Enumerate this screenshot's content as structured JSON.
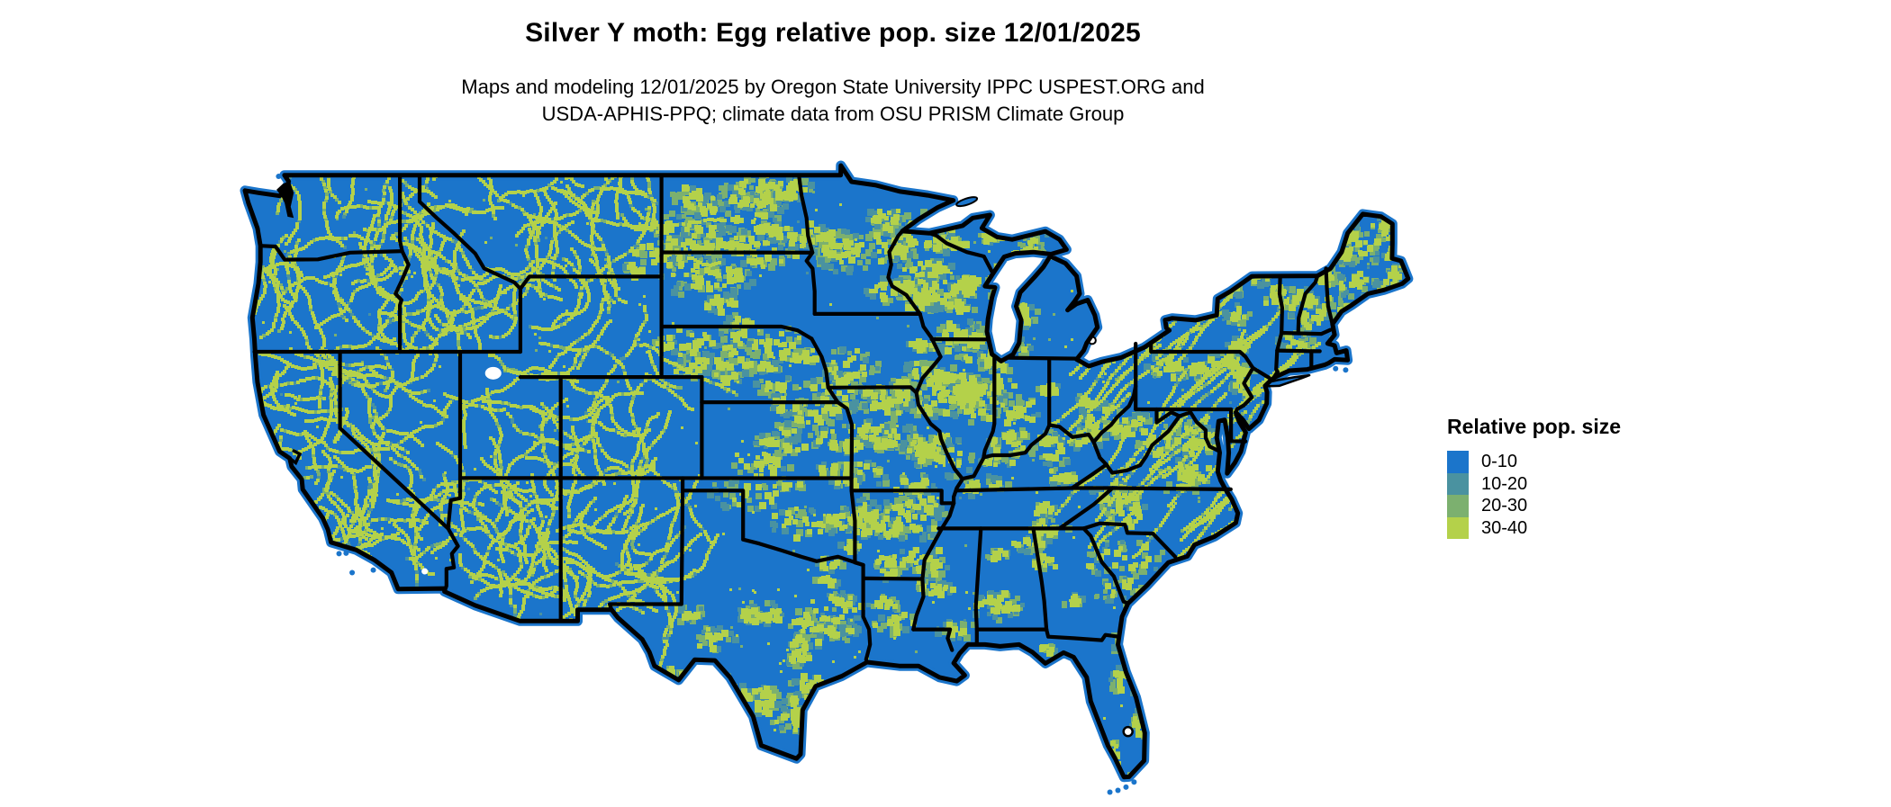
{
  "title": "Silver Y moth: Egg relative pop. size 12/01/2025",
  "subtitle": {
    "line1": "Maps and modeling 12/01/2025 by Oregon State University IPPC USPEST.ORG and",
    "line2": "USDA-APHIS-PPQ; climate data from OSU PRISM Climate Group"
  },
  "legend": {
    "title": "Relative pop. size",
    "items": [
      {
        "label": "0-10",
        "color": "#1b75cb"
      },
      {
        "label": "10-20",
        "color": "#4a92a0"
      },
      {
        "label": "20-30",
        "color": "#7cb06f"
      },
      {
        "label": "30-40",
        "color": "#b4d14a"
      }
    ]
  },
  "map": {
    "region": "Contiguous United States",
    "layer": "Egg relative population size (binned raster)",
    "colors": {
      "water": "#ffffff",
      "state_border": "#000000"
    }
  }
}
